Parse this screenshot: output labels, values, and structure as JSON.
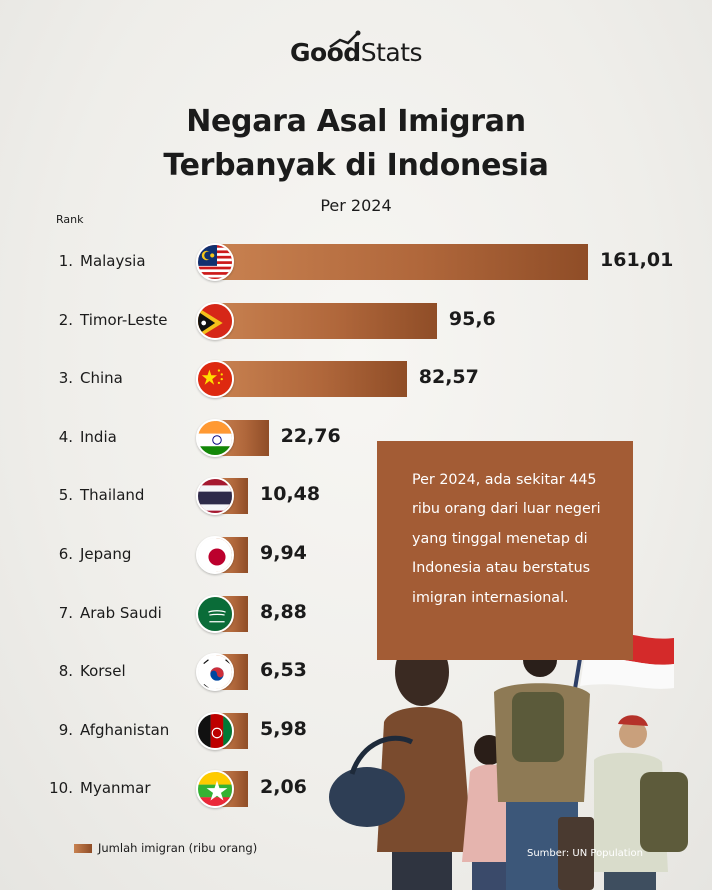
{
  "brand": {
    "part1": "Good",
    "part2": "Stats"
  },
  "title_line1": "Negara Asal Imigran",
  "title_line2": "Terbanyak di Indonesia",
  "subtitle": "Per 2024",
  "rank_header": "Rank",
  "callout": "Per 2024, ada sekitar 445 ribu orang dari luar negeri yang tinggal menetap di Indonesia atau berstatus imigran internasional.",
  "legend": "Jumlah imigran (ribu orang)",
  "source": "Sumber: UN Population",
  "chart_data": {
    "type": "bar",
    "orientation": "horizontal",
    "title": "Negara Asal Imigran Terbanyak di Indonesia",
    "subtitle": "Per 2024",
    "unit": "Jumlah imigran (ribu orang)",
    "categories": [
      "Malaysia",
      "Timor-Leste",
      "China",
      "India",
      "Thailand",
      "Jepang",
      "Arab Saudi",
      "Korsel",
      "Afghanistan",
      "Myanmar"
    ],
    "ranks": [
      "1.",
      "2.",
      "3.",
      "4.",
      "5.",
      "6.",
      "7.",
      "8.",
      "9.",
      "10."
    ],
    "values": [
      161.01,
      95.6,
      82.57,
      22.76,
      10.48,
      9.94,
      8.88,
      6.53,
      5.98,
      2.06
    ],
    "value_labels": [
      "161,01",
      "95,6",
      "82,57",
      "22,76",
      "10,48",
      "9,94",
      "8,88",
      "6,53",
      "5,98",
      "2,06"
    ],
    "flag_icons": [
      "malaysia-flag-icon",
      "timor-leste-flag-icon",
      "china-flag-icon",
      "india-flag-icon",
      "thailand-flag-icon",
      "japan-flag-icon",
      "saudi-arabia-flag-icon",
      "south-korea-flag-icon",
      "afghanistan-flag-icon",
      "myanmar-flag-icon"
    ],
    "bar_color": "#b0673b",
    "legend_position": "bottom-left"
  }
}
